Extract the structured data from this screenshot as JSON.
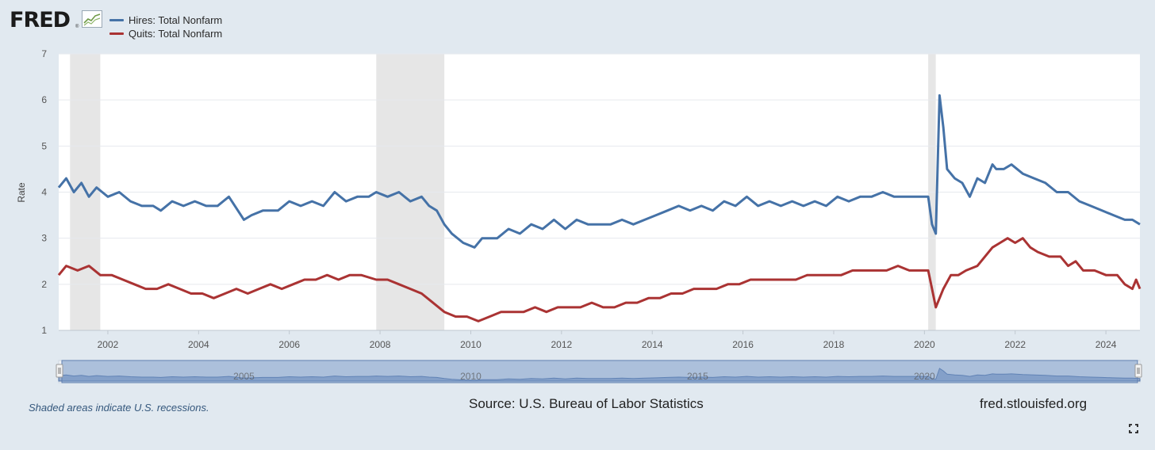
{
  "header": {
    "logo_text": "FRED",
    "logo_mark": "®"
  },
  "legend": [
    {
      "label": "Hires: Total Nonfarm",
      "color": "#4572a7"
    },
    {
      "label": "Quits: Total Nonfarm",
      "color": "#aa3333"
    }
  ],
  "footer": {
    "note": "Shaded areas indicate U.S. recessions.",
    "source": "Source: U.S. Bureau of Labor Statistics",
    "site": "fred.stlouisfed.org",
    "fullscreen_icon": "fullscreen-icon"
  },
  "navigator": {
    "tick_labels": [
      "2005",
      "2010",
      "2015",
      "2020"
    ]
  },
  "chart_data": {
    "type": "line",
    "title": "",
    "xlabel": "",
    "ylabel": "Rate",
    "xlim": [
      "2000-12",
      "2024-10"
    ],
    "ylim": [
      1,
      7
    ],
    "y_ticks": [
      1,
      2,
      3,
      4,
      5,
      6,
      7
    ],
    "x_ticks": [
      "2002",
      "2004",
      "2006",
      "2008",
      "2010",
      "2012",
      "2014",
      "2016",
      "2018",
      "2020",
      "2022",
      "2024"
    ],
    "recessions": [
      [
        "2001-03",
        "2001-11"
      ],
      [
        "2007-12",
        "2009-06"
      ],
      [
        "2020-02",
        "2020-04"
      ]
    ],
    "grid": true,
    "legend_position": "top-left",
    "series": [
      {
        "name": "Hires: Total Nonfarm",
        "color": "#4572a7",
        "points": [
          [
            "2000-12",
            4.1
          ],
          [
            "2001-02",
            4.3
          ],
          [
            "2001-04",
            4.0
          ],
          [
            "2001-06",
            4.2
          ],
          [
            "2001-08",
            3.9
          ],
          [
            "2001-10",
            4.1
          ],
          [
            "2002-01",
            3.9
          ],
          [
            "2002-04",
            4.0
          ],
          [
            "2002-07",
            3.8
          ],
          [
            "2002-10",
            3.7
          ],
          [
            "2003-01",
            3.7
          ],
          [
            "2003-03",
            3.6
          ],
          [
            "2003-06",
            3.8
          ],
          [
            "2003-09",
            3.7
          ],
          [
            "2003-12",
            3.8
          ],
          [
            "2004-03",
            3.7
          ],
          [
            "2004-06",
            3.7
          ],
          [
            "2004-09",
            3.9
          ],
          [
            "2005-01",
            3.4
          ],
          [
            "2005-03",
            3.5
          ],
          [
            "2005-06",
            3.6
          ],
          [
            "2005-10",
            3.6
          ],
          [
            "2006-01",
            3.8
          ],
          [
            "2006-04",
            3.7
          ],
          [
            "2006-07",
            3.8
          ],
          [
            "2006-10",
            3.7
          ],
          [
            "2007-01",
            4.0
          ],
          [
            "2007-04",
            3.8
          ],
          [
            "2007-07",
            3.9
          ],
          [
            "2007-10",
            3.9
          ],
          [
            "2007-12",
            4.0
          ],
          [
            "2008-03",
            3.9
          ],
          [
            "2008-06",
            4.0
          ],
          [
            "2008-09",
            3.8
          ],
          [
            "2008-12",
            3.9
          ],
          [
            "2009-02",
            3.7
          ],
          [
            "2009-04",
            3.6
          ],
          [
            "2009-06",
            3.3
          ],
          [
            "2009-08",
            3.1
          ],
          [
            "2009-11",
            2.9
          ],
          [
            "2010-02",
            2.8
          ],
          [
            "2010-04",
            3.0
          ],
          [
            "2010-08",
            3.0
          ],
          [
            "2010-11",
            3.2
          ],
          [
            "2011-02",
            3.1
          ],
          [
            "2011-05",
            3.3
          ],
          [
            "2011-08",
            3.2
          ],
          [
            "2011-11",
            3.4
          ],
          [
            "2012-02",
            3.2
          ],
          [
            "2012-05",
            3.4
          ],
          [
            "2012-08",
            3.3
          ],
          [
            "2012-11",
            3.3
          ],
          [
            "2013-02",
            3.3
          ],
          [
            "2013-05",
            3.4
          ],
          [
            "2013-08",
            3.3
          ],
          [
            "2013-11",
            3.4
          ],
          [
            "2014-02",
            3.5
          ],
          [
            "2014-05",
            3.6
          ],
          [
            "2014-08",
            3.7
          ],
          [
            "2014-11",
            3.6
          ],
          [
            "2015-02",
            3.7
          ],
          [
            "2015-05",
            3.6
          ],
          [
            "2015-08",
            3.8
          ],
          [
            "2015-11",
            3.7
          ],
          [
            "2016-02",
            3.9
          ],
          [
            "2016-05",
            3.7
          ],
          [
            "2016-08",
            3.8
          ],
          [
            "2016-11",
            3.7
          ],
          [
            "2017-02",
            3.8
          ],
          [
            "2017-05",
            3.7
          ],
          [
            "2017-08",
            3.8
          ],
          [
            "2017-11",
            3.7
          ],
          [
            "2018-02",
            3.9
          ],
          [
            "2018-05",
            3.8
          ],
          [
            "2018-08",
            3.9
          ],
          [
            "2018-11",
            3.9
          ],
          [
            "2019-02",
            4.0
          ],
          [
            "2019-05",
            3.9
          ],
          [
            "2019-08",
            3.9
          ],
          [
            "2019-11",
            3.9
          ],
          [
            "2020-01",
            3.9
          ],
          [
            "2020-02",
            3.9
          ],
          [
            "2020-03",
            3.3
          ],
          [
            "2020-04",
            3.1
          ],
          [
            "2020-05",
            6.1
          ],
          [
            "2020-06",
            5.4
          ],
          [
            "2020-07",
            4.5
          ],
          [
            "2020-09",
            4.3
          ],
          [
            "2020-11",
            4.2
          ],
          [
            "2021-01",
            3.9
          ],
          [
            "2021-03",
            4.3
          ],
          [
            "2021-05",
            4.2
          ],
          [
            "2021-07",
            4.6
          ],
          [
            "2021-08",
            4.5
          ],
          [
            "2021-10",
            4.5
          ],
          [
            "2021-12",
            4.6
          ],
          [
            "2022-03",
            4.4
          ],
          [
            "2022-06",
            4.3
          ],
          [
            "2022-09",
            4.2
          ],
          [
            "2022-12",
            4.0
          ],
          [
            "2023-03",
            4.0
          ],
          [
            "2023-06",
            3.8
          ],
          [
            "2023-09",
            3.7
          ],
          [
            "2023-12",
            3.6
          ],
          [
            "2024-03",
            3.5
          ],
          [
            "2024-06",
            3.4
          ],
          [
            "2024-08",
            3.4
          ],
          [
            "2024-10",
            3.3
          ]
        ]
      },
      {
        "name": "Quits: Total Nonfarm",
        "color": "#aa3333",
        "points": [
          [
            "2000-12",
            2.2
          ],
          [
            "2001-02",
            2.4
          ],
          [
            "2001-05",
            2.3
          ],
          [
            "2001-08",
            2.4
          ],
          [
            "2001-11",
            2.2
          ],
          [
            "2002-02",
            2.2
          ],
          [
            "2002-05",
            2.1
          ],
          [
            "2002-08",
            2.0
          ],
          [
            "2002-11",
            1.9
          ],
          [
            "2003-02",
            1.9
          ],
          [
            "2003-05",
            2.0
          ],
          [
            "2003-08",
            1.9
          ],
          [
            "2003-11",
            1.8
          ],
          [
            "2004-02",
            1.8
          ],
          [
            "2004-05",
            1.7
          ],
          [
            "2004-08",
            1.8
          ],
          [
            "2004-11",
            1.9
          ],
          [
            "2005-02",
            1.8
          ],
          [
            "2005-05",
            1.9
          ],
          [
            "2005-08",
            2.0
          ],
          [
            "2005-11",
            1.9
          ],
          [
            "2006-02",
            2.0
          ],
          [
            "2006-05",
            2.1
          ],
          [
            "2006-08",
            2.1
          ],
          [
            "2006-11",
            2.2
          ],
          [
            "2007-02",
            2.1
          ],
          [
            "2007-05",
            2.2
          ],
          [
            "2007-08",
            2.2
          ],
          [
            "2007-12",
            2.1
          ],
          [
            "2008-03",
            2.1
          ],
          [
            "2008-06",
            2.0
          ],
          [
            "2008-09",
            1.9
          ],
          [
            "2008-12",
            1.8
          ],
          [
            "2009-03",
            1.6
          ],
          [
            "2009-06",
            1.4
          ],
          [
            "2009-09",
            1.3
          ],
          [
            "2009-12",
            1.3
          ],
          [
            "2010-03",
            1.2
          ],
          [
            "2010-06",
            1.3
          ],
          [
            "2010-09",
            1.4
          ],
          [
            "2010-12",
            1.4
          ],
          [
            "2011-03",
            1.4
          ],
          [
            "2011-06",
            1.5
          ],
          [
            "2011-09",
            1.4
          ],
          [
            "2011-12",
            1.5
          ],
          [
            "2012-03",
            1.5
          ],
          [
            "2012-06",
            1.5
          ],
          [
            "2012-09",
            1.6
          ],
          [
            "2012-12",
            1.5
          ],
          [
            "2013-03",
            1.5
          ],
          [
            "2013-06",
            1.6
          ],
          [
            "2013-09",
            1.6
          ],
          [
            "2013-12",
            1.7
          ],
          [
            "2014-03",
            1.7
          ],
          [
            "2014-06",
            1.8
          ],
          [
            "2014-09",
            1.8
          ],
          [
            "2014-12",
            1.9
          ],
          [
            "2015-03",
            1.9
          ],
          [
            "2015-06",
            1.9
          ],
          [
            "2015-09",
            2.0
          ],
          [
            "2015-12",
            2.0
          ],
          [
            "2016-03",
            2.1
          ],
          [
            "2016-06",
            2.1
          ],
          [
            "2016-09",
            2.1
          ],
          [
            "2016-12",
            2.1
          ],
          [
            "2017-03",
            2.1
          ],
          [
            "2017-06",
            2.2
          ],
          [
            "2017-09",
            2.2
          ],
          [
            "2017-12",
            2.2
          ],
          [
            "2018-03",
            2.2
          ],
          [
            "2018-06",
            2.3
          ],
          [
            "2018-09",
            2.3
          ],
          [
            "2018-12",
            2.3
          ],
          [
            "2019-03",
            2.3
          ],
          [
            "2019-06",
            2.4
          ],
          [
            "2019-09",
            2.3
          ],
          [
            "2019-12",
            2.3
          ],
          [
            "2020-02",
            2.3
          ],
          [
            "2020-03",
            1.9
          ],
          [
            "2020-04",
            1.5
          ],
          [
            "2020-06",
            1.9
          ],
          [
            "2020-08",
            2.2
          ],
          [
            "2020-10",
            2.2
          ],
          [
            "2020-12",
            2.3
          ],
          [
            "2021-03",
            2.4
          ],
          [
            "2021-05",
            2.6
          ],
          [
            "2021-07",
            2.8
          ],
          [
            "2021-09",
            2.9
          ],
          [
            "2021-11",
            3.0
          ],
          [
            "2022-01",
            2.9
          ],
          [
            "2022-03",
            3.0
          ],
          [
            "2022-05",
            2.8
          ],
          [
            "2022-07",
            2.7
          ],
          [
            "2022-10",
            2.6
          ],
          [
            "2023-01",
            2.6
          ],
          [
            "2023-03",
            2.4
          ],
          [
            "2023-05",
            2.5
          ],
          [
            "2023-07",
            2.3
          ],
          [
            "2023-10",
            2.3
          ],
          [
            "2024-01",
            2.2
          ],
          [
            "2024-04",
            2.2
          ],
          [
            "2024-06",
            2.0
          ],
          [
            "2024-08",
            1.9
          ],
          [
            "2024-09",
            2.1
          ],
          [
            "2024-10",
            1.9
          ]
        ]
      }
    ]
  }
}
